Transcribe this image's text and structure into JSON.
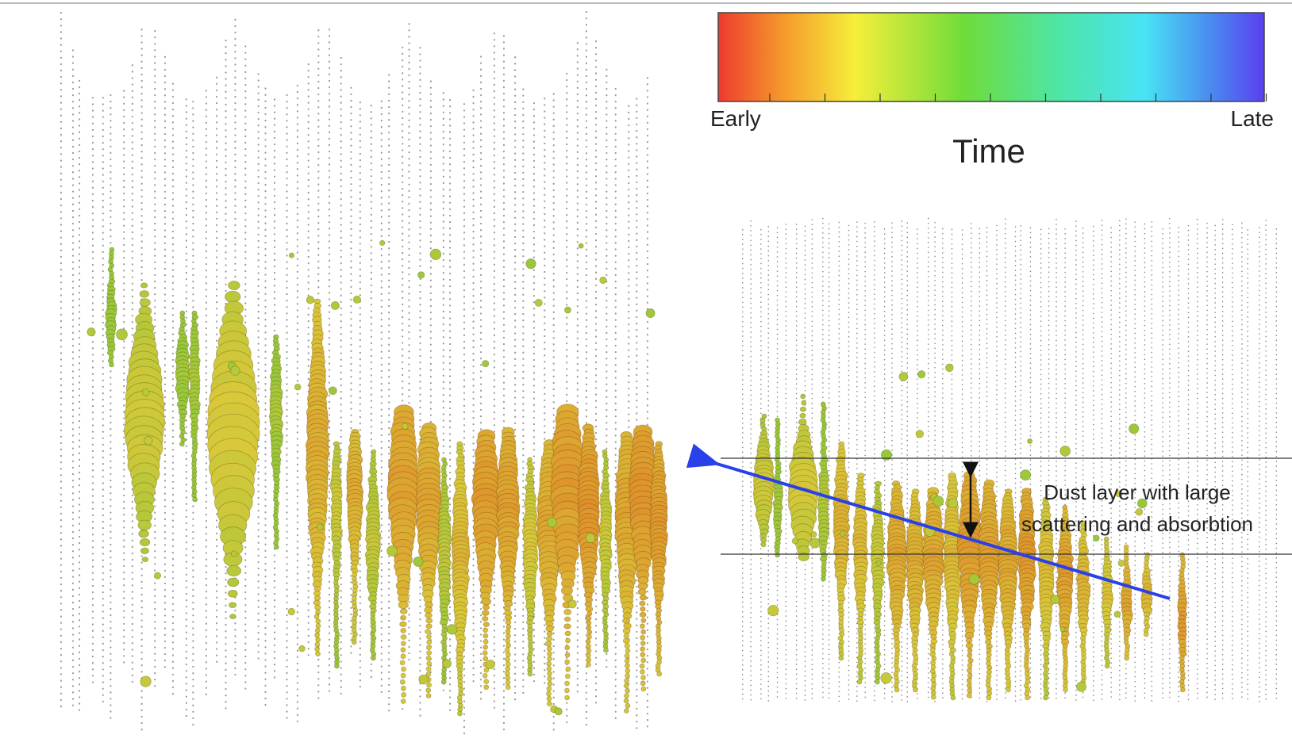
{
  "colorbar": {
    "min_label": "Early",
    "max_label": "Late",
    "title": "Time"
  },
  "annotation": {
    "lines": [
      "Dust layer with large",
      "scattering and absorbtion"
    ]
  }
}
